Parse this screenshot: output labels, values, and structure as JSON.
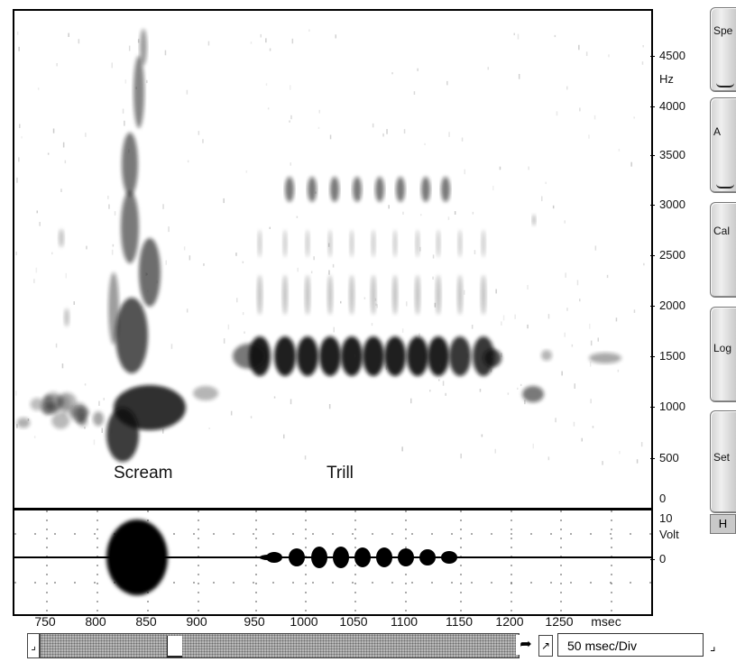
{
  "spectrogram": {
    "annotations": {
      "scream": "Scream",
      "trill": "Trill"
    },
    "y_axis": {
      "unit": "Hz",
      "ticks": [
        "4500",
        "4000",
        "3500",
        "3000",
        "2500",
        "2000",
        "1500",
        "1000",
        "500",
        "0"
      ]
    }
  },
  "waveform": {
    "y_axis": {
      "max_label": "10",
      "unit": "Volt",
      "zero_label": "0"
    },
    "x_axis": {
      "unit": "msec",
      "ticks": [
        "750",
        "800",
        "850",
        "900",
        "950",
        "1000",
        "1050",
        "1100",
        "1150",
        "1200",
        "1250"
      ]
    }
  },
  "side_buttons": [
    {
      "label": "Spe"
    },
    {
      "label": "A"
    },
    {
      "label": "Cal"
    },
    {
      "label": "Log"
    },
    {
      "label": "Set"
    }
  ],
  "h_button": "H",
  "time_scale": "50 msec/Div",
  "colors": {
    "ink": "#111111",
    "paper": "#ffffff",
    "button_face": "#d6d6d6",
    "scroll_track": "#b8b8b8"
  }
}
